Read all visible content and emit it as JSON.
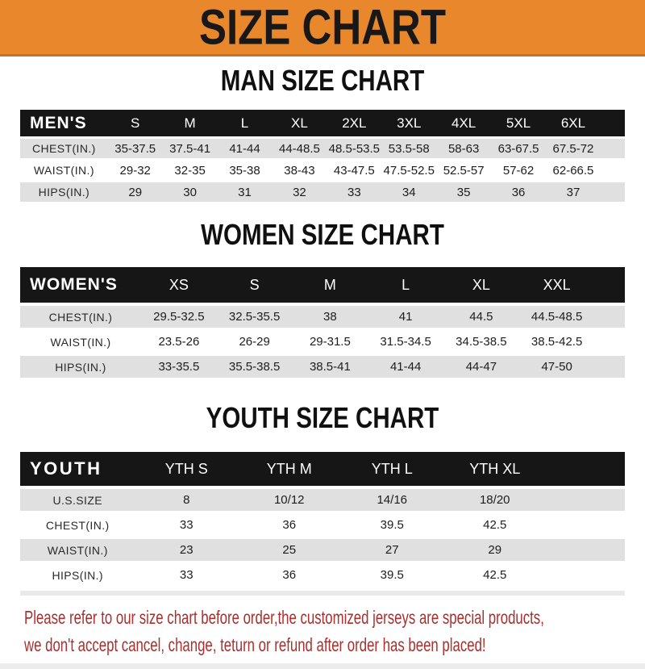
{
  "banner": {
    "title": "SIZE CHART"
  },
  "colors": {
    "banner_orange": "#E8872B",
    "banner_border": "#C0752A",
    "header_black": "#161616",
    "row_shade": "#E0E0E0",
    "footer_red": "#A9302E"
  },
  "sections": [
    {
      "heading": "MAN SIZE CHART",
      "corner_label": "MEN'S",
      "columns": [
        "S",
        "M",
        "L",
        "XL",
        "2XL",
        "3XL",
        "4XL",
        "5XL",
        "6XL"
      ],
      "rows": [
        {
          "label": "CHEST(IN.)",
          "values": [
            "35-37.5",
            "37.5-41",
            "41-44",
            "44-48.5",
            "48.5-53.5",
            "53.5-58",
            "58-63",
            "63-67.5",
            "67.5-72"
          ]
        },
        {
          "label": "WAIST(IN.)",
          "values": [
            "29-32",
            "32-35",
            "35-38",
            "38-43",
            "43-47.5",
            "47.5-52.5",
            "52.5-57",
            "57-62",
            "62-66.5"
          ]
        },
        {
          "label": "HIPS(IN.)",
          "values": [
            "29",
            "30",
            "31",
            "32",
            "33",
            "34",
            "35",
            "36",
            "37"
          ]
        }
      ]
    },
    {
      "heading": "WOMEN SIZE CHART",
      "corner_label": "WOMEN'S",
      "columns": [
        "XS",
        "S",
        "M",
        "L",
        "XL",
        "XXL"
      ],
      "rows": [
        {
          "label": "CHEST(IN.)",
          "values": [
            "29.5-32.5",
            "32.5-35.5",
            "38",
            "41",
            "44.5",
            "44.5-48.5"
          ]
        },
        {
          "label": "WAIST(IN.)",
          "values": [
            "23.5-26",
            "26-29",
            "29-31.5",
            "31.5-34.5",
            "34.5-38.5",
            "38.5-42.5"
          ]
        },
        {
          "label": "HIPS(IN.)",
          "values": [
            "33-35.5",
            "35.5-38.5",
            "38.5-41",
            "41-44",
            "44-47",
            "47-50"
          ]
        }
      ]
    },
    {
      "heading": "YOUTH SIZE CHART",
      "corner_label": "YOUTH",
      "columns": [
        "YTH S",
        "YTH M",
        "YTH L",
        "YTH XL"
      ],
      "rows": [
        {
          "label": "U.S.SIZE",
          "values": [
            "8",
            "10/12",
            "14/16",
            "18/20"
          ]
        },
        {
          "label": "CHEST(IN.)",
          "values": [
            "33",
            "36",
            "39.5",
            "42.5"
          ]
        },
        {
          "label": "WAIST(IN.)",
          "values": [
            "23",
            "25",
            "27",
            "29"
          ]
        },
        {
          "label": "HIPS(IN.)",
          "values": [
            "33",
            "36",
            "39.5",
            "42.5"
          ]
        }
      ]
    }
  ],
  "footer": {
    "line1": "Please refer to our size chart before order,the customized jerseys are special products,",
    "line2": "we don't accept cancel, change, teturn or refund after order has been placed!"
  }
}
